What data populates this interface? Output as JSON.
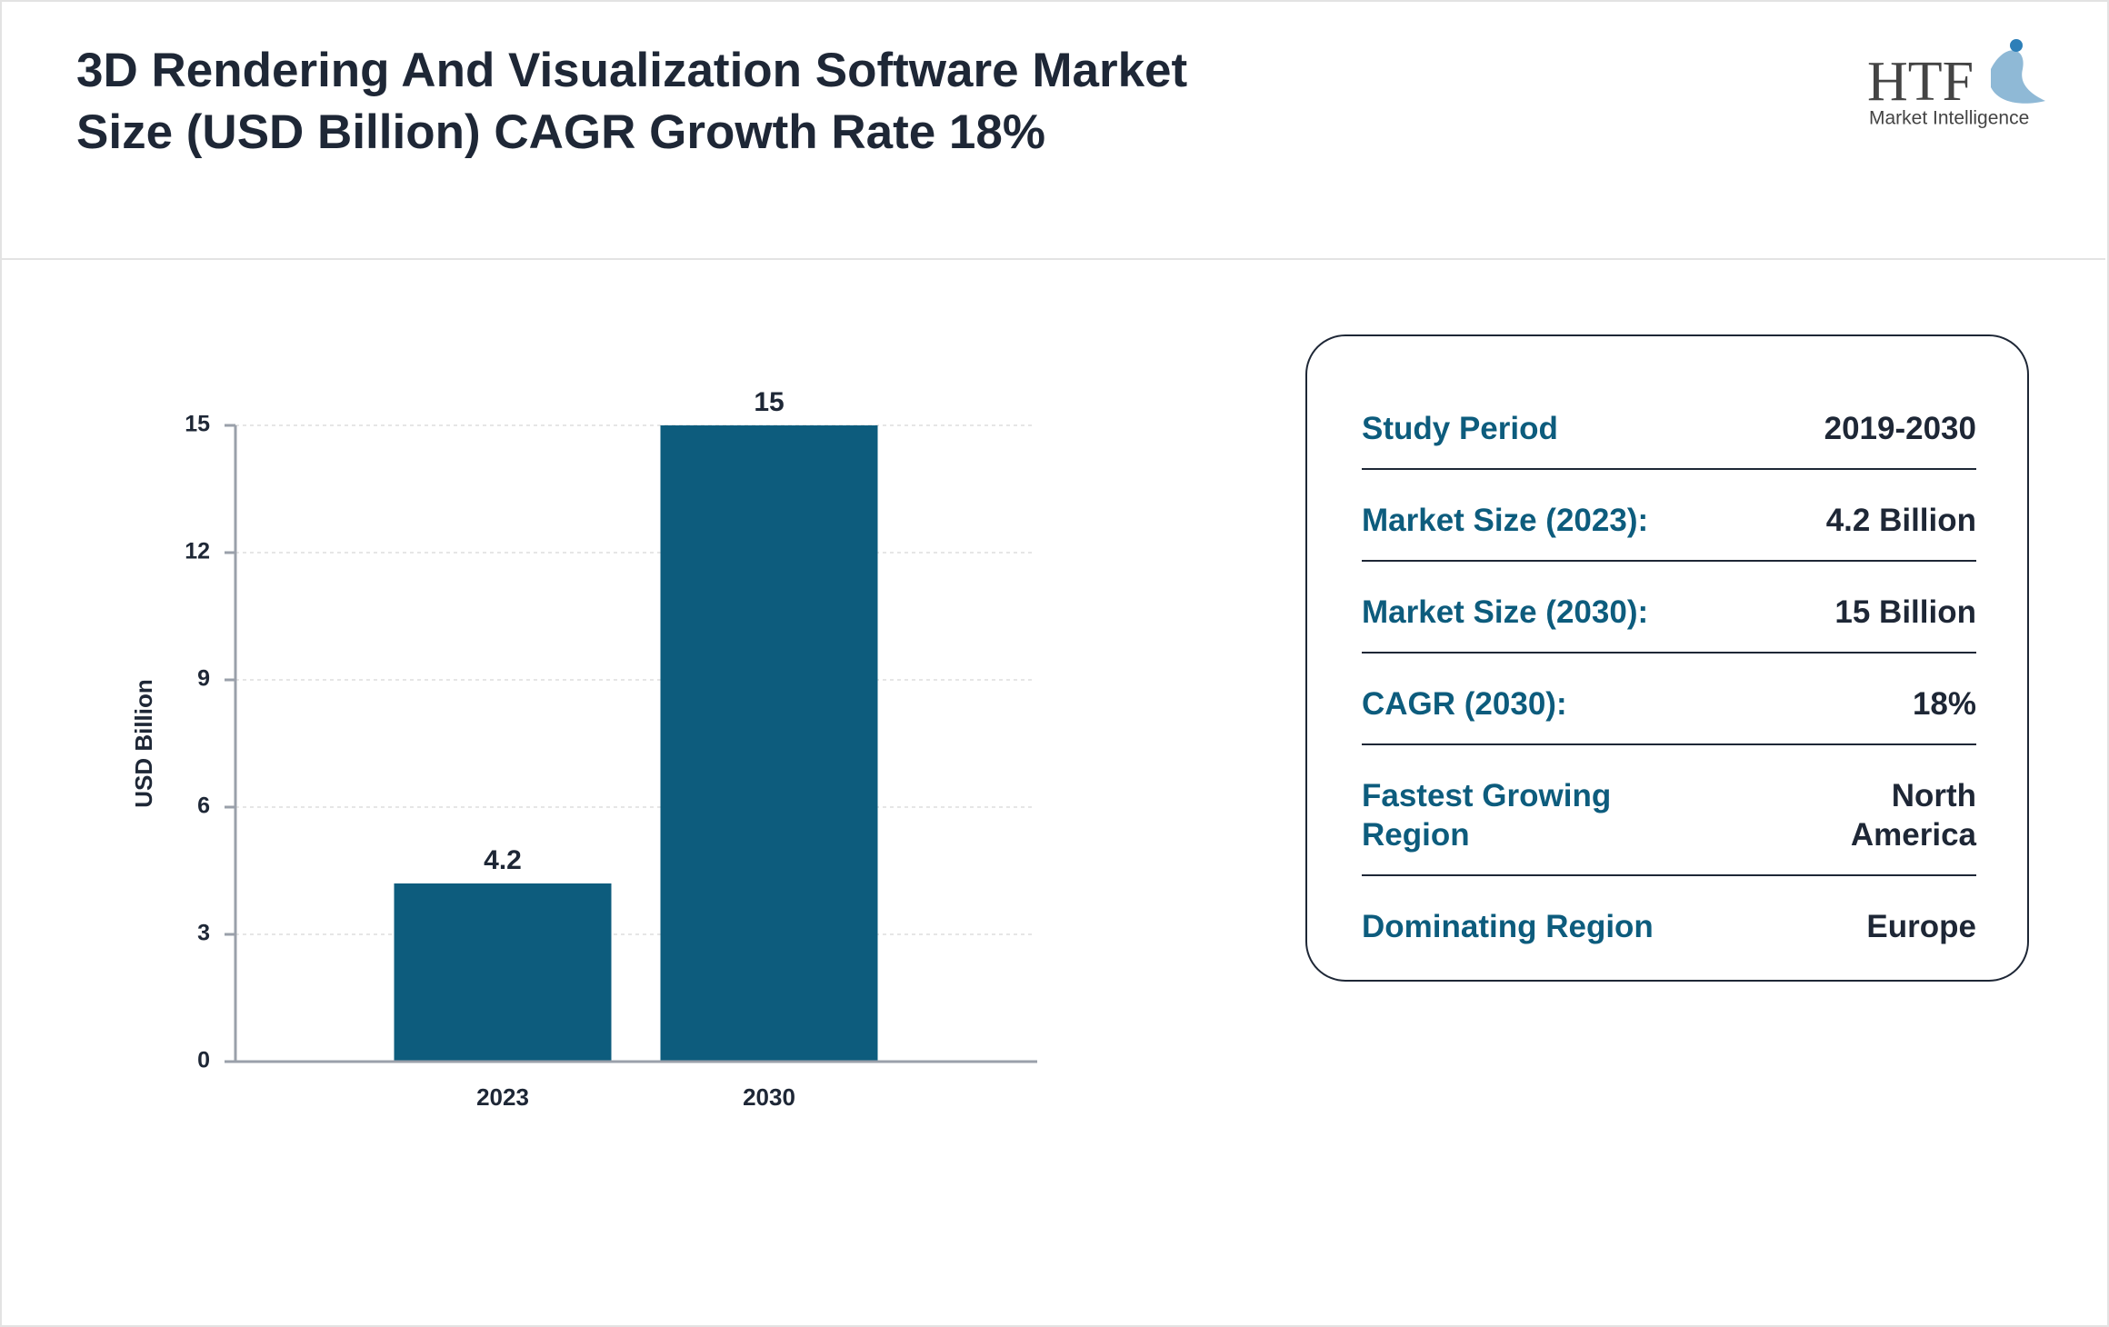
{
  "header": {
    "title": "3D Rendering And Visualization Software Market Size (USD Billion) CAGR Growth Rate 18%",
    "logo": {
      "brand": "HTF",
      "tagline": "Market Intelligence"
    }
  },
  "chart_data": {
    "type": "bar",
    "categories": [
      "2023",
      "2030"
    ],
    "values": [
      4.2,
      15
    ],
    "color": "#0d5c7d",
    "ylabel": "USD Billion",
    "ylim": [
      0,
      15
    ],
    "yticks": [
      0,
      3,
      6,
      9,
      12,
      15
    ],
    "grid": true
  },
  "summary": {
    "rows": [
      [
        "Study Period",
        "2019-2030"
      ],
      [
        "Market Size (2023):",
        "4.2 Billion"
      ],
      [
        "Market Size (2030):",
        "15 Billion"
      ],
      [
        "CAGR (2030):",
        "18%"
      ],
      [
        "Fastest Growing Region",
        "North America"
      ],
      [
        "Dominating Region",
        "Europe"
      ]
    ]
  }
}
